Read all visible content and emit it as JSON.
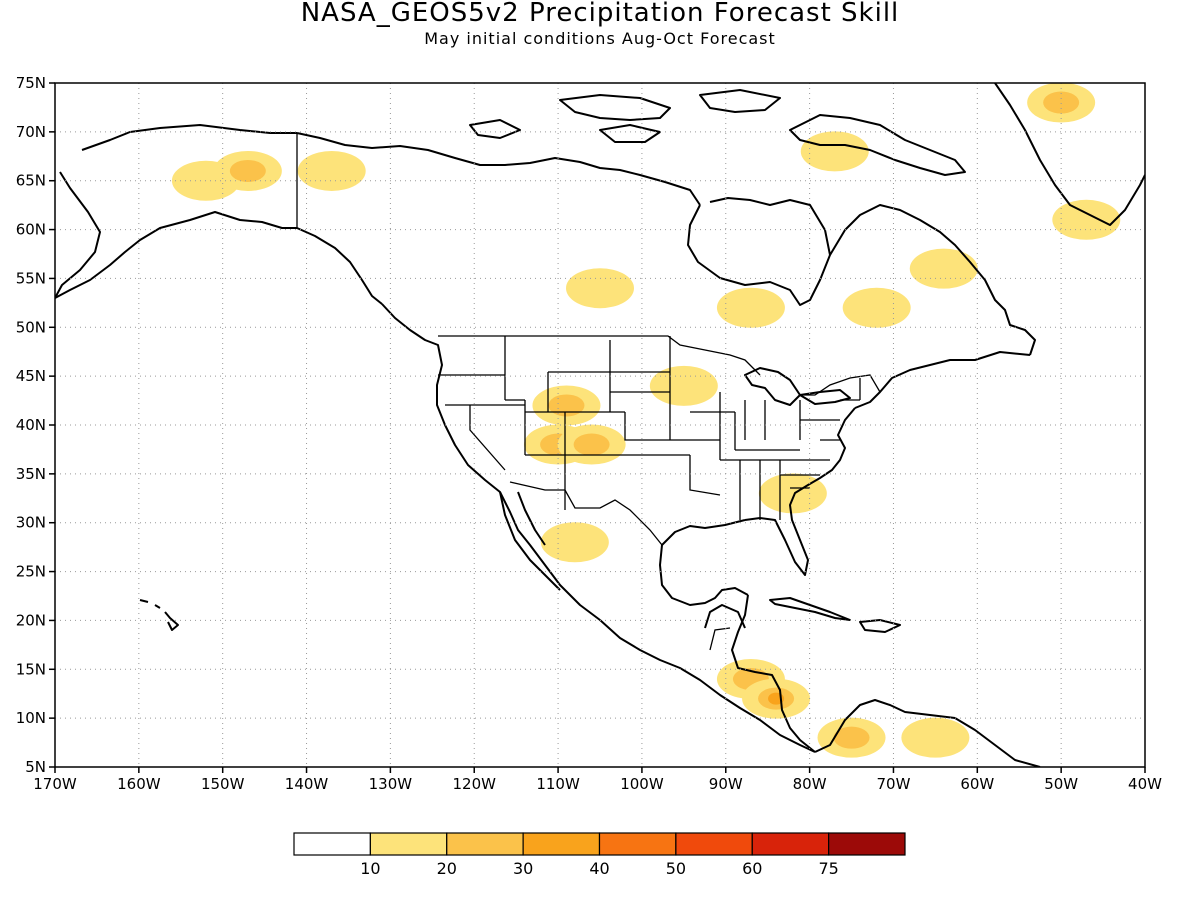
{
  "header": {
    "title": "NASA_GEOS5v2 Precipitation Forecast Skill",
    "subtitle": "May initial conditions   Aug-Oct Forecast"
  },
  "map": {
    "lon_range": [
      -170,
      -40
    ],
    "lat_range": [
      5,
      75
    ],
    "lon_ticks": [
      "170W",
      "160W",
      "150W",
      "140W",
      "130W",
      "120W",
      "110W",
      "100W",
      "90W",
      "80W",
      "70W",
      "60W",
      "50W",
      "40W"
    ],
    "lat_ticks": [
      "5N",
      "10N",
      "15N",
      "20N",
      "25N",
      "30N",
      "35N",
      "40N",
      "45N",
      "50N",
      "55N",
      "60N",
      "65N",
      "70N",
      "75N"
    ],
    "grid": true
  },
  "colorbar": {
    "labels": [
      "10",
      "20",
      "30",
      "40",
      "50",
      "60",
      "75"
    ],
    "colors": [
      "#ffffff",
      "#fde37a",
      "#fbc24a",
      "#f9a31c",
      "#f77412",
      "#f04a0c",
      "#d8230a",
      "#9c0a08"
    ]
  },
  "skill_regions": [
    {
      "name": "alaska-interior",
      "lon": -152,
      "lat": 65,
      "level": 1
    },
    {
      "name": "alaska-north",
      "lon": -147,
      "lat": 66,
      "level": 2
    },
    {
      "name": "yukon",
      "lon": -137,
      "lat": 66,
      "level": 1
    },
    {
      "name": "southwest-us",
      "lon": -110,
      "lat": 38,
      "level": 2
    },
    {
      "name": "colorado",
      "lon": -106,
      "lat": 38,
      "level": 2
    },
    {
      "name": "wyoming",
      "lon": -109,
      "lat": 42,
      "level": 2
    },
    {
      "name": "great-plains",
      "lon": -95,
      "lat": 44,
      "level": 1
    },
    {
      "name": "mexico-west",
      "lon": -108,
      "lat": 28,
      "level": 1
    },
    {
      "name": "central-america",
      "lon": -87,
      "lat": 14,
      "level": 2
    },
    {
      "name": "nicaragua",
      "lon": -84,
      "lat": 12,
      "level": 3
    },
    {
      "name": "colombia",
      "lon": -75,
      "lat": 8,
      "level": 2
    },
    {
      "name": "venezuela",
      "lon": -65,
      "lat": 8,
      "level": 1
    },
    {
      "name": "greenland-south",
      "lon": -47,
      "lat": 61,
      "level": 1
    },
    {
      "name": "greenland-north",
      "lon": -50,
      "lat": 73,
      "level": 2
    },
    {
      "name": "hudson-bay",
      "lon": -77,
      "lat": 68,
      "level": 1
    },
    {
      "name": "quebec",
      "lon": -72,
      "lat": 52,
      "level": 1
    },
    {
      "name": "ontario",
      "lon": -87,
      "lat": 52,
      "level": 1
    },
    {
      "name": "labrador",
      "lon": -64,
      "lat": 56,
      "level": 1
    },
    {
      "name": "georgia",
      "lon": -82,
      "lat": 33,
      "level": 1
    },
    {
      "name": "saskatchewan",
      "lon": -105,
      "lat": 54,
      "level": 1
    }
  ]
}
